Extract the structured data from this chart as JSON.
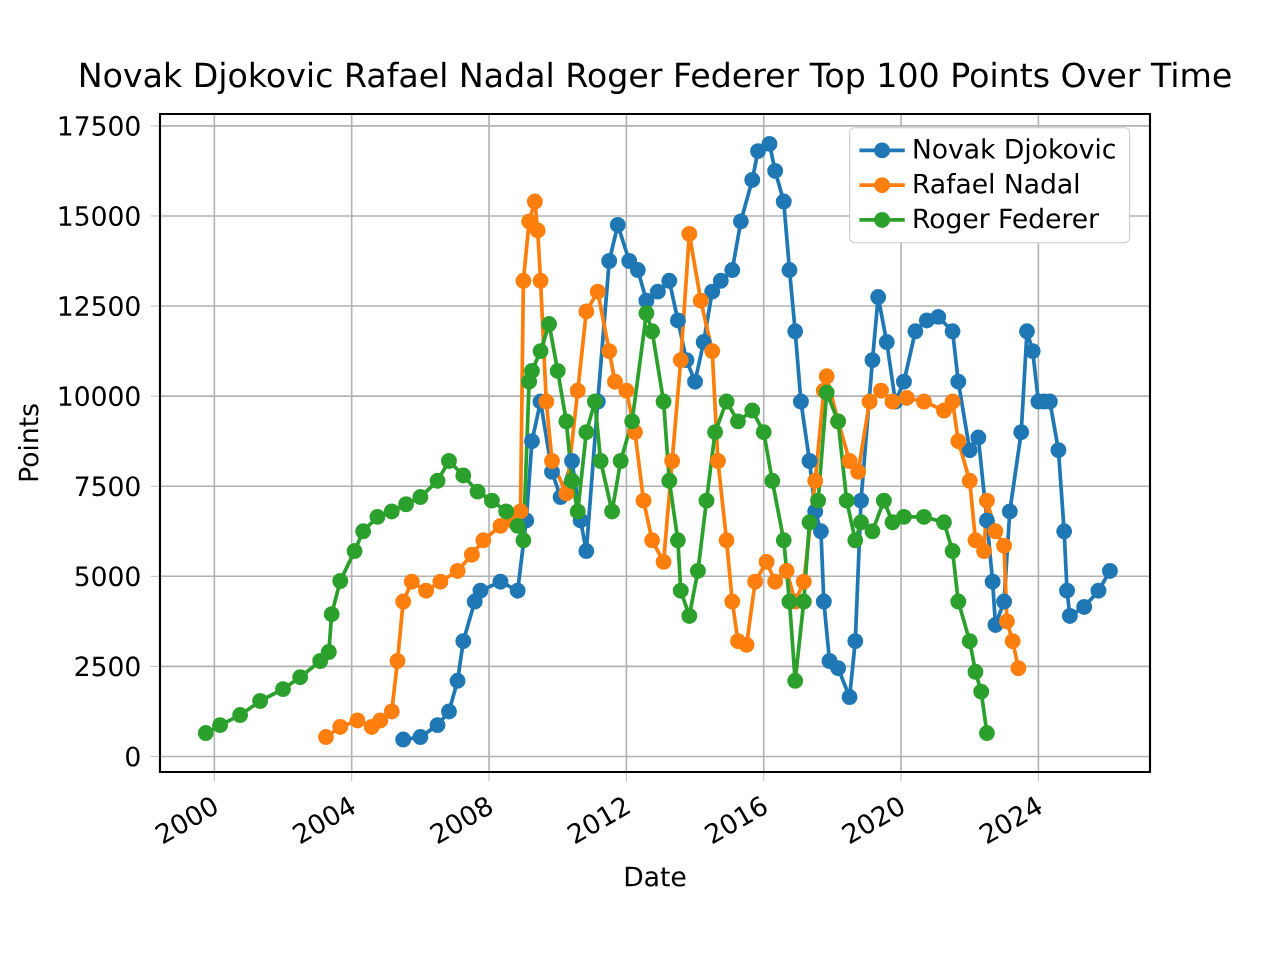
{
  "chart_data": {
    "type": "line",
    "title": "Novak Djokovic Rafael Nadal Roger Federer Top 100 Points Over Time",
    "xlabel": "Date",
    "ylabel": "Points",
    "xlim": [
      "1998-06",
      "2027-04"
    ],
    "xticks": [
      "2000",
      "2004",
      "2008",
      "2012",
      "2016",
      "2020",
      "2024"
    ],
    "ylim": [
      -430,
      17830
    ],
    "yticks": [
      0,
      2500,
      5000,
      7500,
      10000,
      12500,
      15000,
      17500
    ],
    "grid": true,
    "legend": "top right",
    "marker": "circle",
    "line_style": "solid",
    "series": [
      {
        "name": "Novak Djokovic",
        "color": "#1f77b4",
        "x": [
          "2005-07",
          "2006-01",
          "2006-07",
          "2006-11",
          "2007-02",
          "2007-04",
          "2007-08",
          "2007-10",
          "2008-05",
          "2008-11",
          "2009-02",
          "2009-04",
          "2009-07",
          "2009-11",
          "2010-02",
          "2010-06",
          "2010-09",
          "2010-11",
          "2011-03",
          "2011-07",
          "2011-10",
          "2012-02",
          "2012-05",
          "2012-08",
          "2012-12",
          "2013-04",
          "2013-07",
          "2013-10",
          "2014-01",
          "2014-04",
          "2014-07",
          "2014-10",
          "2015-02",
          "2015-05",
          "2015-09",
          "2015-11",
          "2016-03",
          "2016-05",
          "2016-08",
          "2016-10",
          "2016-12",
          "2017-02",
          "2017-05",
          "2017-07",
          "2017-09",
          "2017-10",
          "2017-12",
          "2018-03",
          "2018-07",
          "2018-09",
          "2018-11",
          "2019-03",
          "2019-05",
          "2019-08",
          "2019-11",
          "2020-02",
          "2020-06",
          "2020-10",
          "2021-02",
          "2021-07",
          "2021-09",
          "2022-01",
          "2022-04",
          "2022-07",
          "2022-09",
          "2022-10",
          "2023-01",
          "2023-03",
          "2023-07",
          "2023-09",
          "2023-11",
          "2024-01",
          "2024-03",
          "2024-05",
          "2024-08",
          "2024-10",
          "2024-11",
          "2024-12",
          "2025-05",
          "2025-10",
          "2026-02"
        ],
        "values": [
          470,
          540,
          870,
          1250,
          2100,
          3200,
          4300,
          4600,
          4850,
          4600,
          6550,
          8750,
          9850,
          7900,
          7200,
          8200,
          6550,
          5700,
          9850,
          13750,
          14750,
          13750,
          13500,
          12650,
          12900,
          13200,
          12100,
          11000,
          10400,
          11500,
          12900,
          13200,
          13500,
          14850,
          16000,
          16800,
          17000,
          16250,
          15400,
          13500,
          11800,
          9850,
          8200,
          6800,
          6250,
          4300,
          2650,
          2450,
          1650,
          3200,
          7100,
          11000,
          12750,
          11500,
          9850,
          10400,
          11800,
          12100,
          12200,
          11800,
          10400,
          8500,
          8850,
          6550,
          4850,
          3650,
          4300,
          6800,
          9000,
          11800,
          11250,
          9850,
          9850,
          9850,
          8500,
          6250,
          4600,
          3900,
          4150,
          4600,
          5150
        ]
      },
      {
        "name": "Rafael Nadal",
        "color": "#ff7f0e",
        "x": [
          "2003-04",
          "2003-09",
          "2004-03",
          "2004-08",
          "2004-11",
          "2005-03",
          "2005-05",
          "2005-07",
          "2005-10",
          "2006-03",
          "2006-08",
          "2007-02",
          "2007-07",
          "2007-11",
          "2008-05",
          "2008-09",
          "2008-12",
          "2009-01",
          "2009-03",
          "2009-05",
          "2009-06",
          "2009-07",
          "2009-09",
          "2009-11",
          "2010-04",
          "2010-08",
          "2010-11",
          "2011-03",
          "2011-07",
          "2011-09",
          "2012-01",
          "2012-04",
          "2012-07",
          "2012-10",
          "2013-02",
          "2013-05",
          "2013-08",
          "2013-11",
          "2014-03",
          "2014-07",
          "2014-09",
          "2014-12",
          "2015-02",
          "2015-04",
          "2015-07",
          "2015-10",
          "2016-02",
          "2016-05",
          "2016-09",
          "2016-12",
          "2017-03",
          "2017-07",
          "2017-10",
          "2017-11",
          "2018-03",
          "2018-07",
          "2018-10",
          "2019-02",
          "2019-06",
          "2019-10",
          "2020-03",
          "2020-09",
          "2021-04",
          "2021-07",
          "2021-09",
          "2022-01",
          "2022-03",
          "2022-06",
          "2022-07",
          "2022-10",
          "2023-01",
          "2023-02",
          "2023-04",
          "2023-06"
        ],
        "values": [
          540,
          820,
          1000,
          820,
          1000,
          1250,
          2650,
          4300,
          4850,
          4600,
          4850,
          5150,
          5600,
          6000,
          6400,
          6550,
          6800,
          13200,
          14850,
          15400,
          14600,
          13200,
          9850,
          8200,
          7300,
          10150,
          12350,
          12900,
          11250,
          10400,
          10150,
          9000,
          7100,
          6000,
          5400,
          8200,
          11000,
          14500,
          12650,
          11250,
          8200,
          6000,
          4300,
          3200,
          3100,
          4850,
          5400,
          4850,
          5150,
          4300,
          4850,
          7650,
          10150,
          10550,
          9300,
          8200,
          7900,
          9850,
          10150,
          9850,
          9950,
          9850,
          9600,
          9850,
          8750,
          7650,
          6000,
          5700,
          7100,
          6250,
          5850,
          3750,
          3200,
          2450
        ]
      },
      {
        "name": "Roger Federer",
        "color": "#2ca02c",
        "x": [
          "1999-10",
          "2000-03",
          "2000-10",
          "2001-05",
          "2002-01",
          "2002-07",
          "2003-02",
          "2003-05",
          "2003-06",
          "2003-09",
          "2004-02",
          "2004-05",
          "2004-10",
          "2005-03",
          "2005-08",
          "2006-01",
          "2006-07",
          "2006-11",
          "2007-04",
          "2007-09",
          "2008-02",
          "2008-07",
          "2008-11",
          "2009-01",
          "2009-03",
          "2009-04",
          "2009-07",
          "2009-10",
          "2010-01",
          "2010-04",
          "2010-06",
          "2010-08",
          "2010-11",
          "2011-02",
          "2011-04",
          "2011-08",
          "2011-11",
          "2012-03",
          "2012-08",
          "2012-10",
          "2013-02",
          "2013-04",
          "2013-07",
          "2013-08",
          "2013-11",
          "2014-02",
          "2014-05",
          "2014-08",
          "2014-12",
          "2015-04",
          "2015-09",
          "2016-01",
          "2016-04",
          "2016-08",
          "2016-10",
          "2016-12",
          "2017-03",
          "2017-05",
          "2017-08",
          "2017-11",
          "2018-03",
          "2018-06",
          "2018-09",
          "2018-11",
          "2019-03",
          "2019-07",
          "2019-10",
          "2020-02",
          "2020-09",
          "2021-04",
          "2021-07",
          "2021-09",
          "2022-01",
          "2022-03",
          "2022-05",
          "2022-07"
        ],
        "values": [
          650,
          870,
          1150,
          1540,
          1870,
          2200,
          2650,
          2900,
          3950,
          4870,
          5700,
          6250,
          6650,
          6800,
          7000,
          7200,
          7650,
          8200,
          7800,
          7350,
          7100,
          6800,
          6400,
          6000,
          10400,
          10700,
          11250,
          12000,
          10700,
          9300,
          7650,
          6800,
          9000,
          9850,
          8200,
          6800,
          8200,
          9300,
          12300,
          11800,
          9850,
          7650,
          6000,
          4600,
          3900,
          5150,
          7100,
          9000,
          9850,
          9300,
          9600,
          9000,
          7650,
          6000,
          4300,
          2100,
          4300,
          6500,
          7100,
          10100,
          9300,
          7100,
          6000,
          6500,
          6250,
          7100,
          6500,
          6650,
          6650,
          6500,
          5700,
          4300,
          3200,
          2350,
          1800,
          650
        ]
      }
    ]
  }
}
